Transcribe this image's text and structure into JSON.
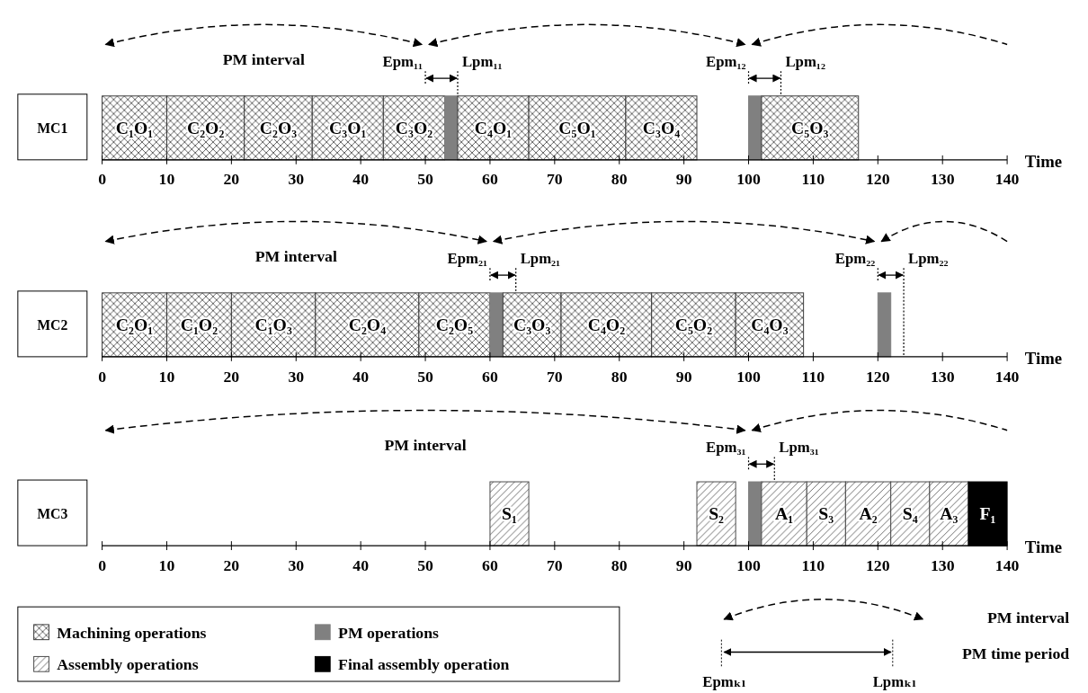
{
  "chart_data": [
    {
      "type": "bar",
      "orientation": "horizontal",
      "categories": [
        "MC1"
      ],
      "xlabel": "Time",
      "xlim": [
        0,
        140
      ],
      "xticks": [
        0,
        10,
        20,
        30,
        40,
        50,
        60,
        70,
        80,
        90,
        100,
        110,
        120,
        130,
        140
      ],
      "series": [
        {
          "name": "C₁O₁",
          "color": "#3a3a3a",
          "base": [
            0
          ],
          "values": [
            10
          ]
        },
        {
          "name": "C₂O₂",
          "color": "#3a3a3a",
          "base": [
            10
          ],
          "values": [
            12
          ]
        },
        {
          "name": "C₂O₃",
          "color": "#3a3a3a",
          "base": [
            22
          ],
          "values": [
            10.5
          ]
        },
        {
          "name": "C₃O₁",
          "color": "#3a3a3a",
          "base": [
            32.5
          ],
          "values": [
            11
          ]
        },
        {
          "name": "C₃O₂",
          "color": "#3a3a3a",
          "base": [
            43.5
          ],
          "values": [
            9.5
          ]
        },
        {
          "color": "#808080",
          "base": [
            53
          ],
          "values": [
            2
          ]
        },
        {
          "name": "C₄O₁",
          "color": "#3a3a3a",
          "base": [
            55
          ],
          "values": [
            11
          ]
        },
        {
          "name": "C₅O₁",
          "color": "#3a3a3a",
          "base": [
            66
          ],
          "values": [
            15
          ]
        },
        {
          "name": "C₃O₄",
          "color": "#3a3a3a",
          "base": [
            81
          ],
          "values": [
            11
          ]
        },
        {
          "color": "#808080",
          "base": [
            100
          ],
          "values": [
            2
          ]
        },
        {
          "name": "C₅O₃",
          "color": "#3a3a3a",
          "base": [
            102
          ],
          "values": [
            15
          ]
        }
      ],
      "annotations": [
        "PM interval"
      ],
      "ref_lines": [
        {
          "axis": "x",
          "value": 50,
          "label": "Epm₁₁",
          "line_style": "dotted"
        },
        {
          "axis": "x",
          "value": 55,
          "label": "Lpm₁₁",
          "line_style": "dotted"
        },
        {
          "axis": "x",
          "value": 100,
          "label": "Epm₁₂",
          "line_style": "dotted"
        },
        {
          "axis": "x",
          "value": 105,
          "label": "Lpm₁₂",
          "line_style": "dotted"
        }
      ]
    },
    {
      "type": "bar",
      "orientation": "horizontal",
      "categories": [
        "MC2"
      ],
      "xlabel": "Time",
      "xlim": [
        0,
        140
      ],
      "xticks": [
        0,
        10,
        20,
        30,
        40,
        50,
        60,
        70,
        80,
        90,
        100,
        110,
        120,
        130,
        140
      ],
      "series": [
        {
          "name": "C₂O₁",
          "color": "#3a3a3a",
          "base": [
            0
          ],
          "values": [
            10
          ]
        },
        {
          "name": "C₁O₂",
          "color": "#3a3a3a",
          "base": [
            10
          ],
          "values": [
            10
          ]
        },
        {
          "name": "C₁O₃",
          "color": "#3a3a3a",
          "base": [
            20
          ],
          "values": [
            13
          ]
        },
        {
          "name": "C₂O₄",
          "color": "#3a3a3a",
          "base": [
            33
          ],
          "values": [
            16
          ]
        },
        {
          "name": "C₂O₅",
          "color": "#3a3a3a",
          "base": [
            49
          ],
          "values": [
            11
          ]
        },
        {
          "color": "#808080",
          "base": [
            60
          ],
          "values": [
            2
          ]
        },
        {
          "name": "C₃O₃",
          "color": "#3a3a3a",
          "base": [
            62
          ],
          "values": [
            9
          ]
        },
        {
          "name": "C₄O₂",
          "color": "#3a3a3a",
          "base": [
            71
          ],
          "values": [
            14
          ]
        },
        {
          "name": "C₅O₂",
          "color": "#3a3a3a",
          "base": [
            85
          ],
          "values": [
            13
          ]
        },
        {
          "name": "C₄O₃",
          "color": "#3a3a3a",
          "base": [
            98
          ],
          "values": [
            10.5
          ]
        },
        {
          "color": "#808080",
          "base": [
            120
          ],
          "values": [
            2
          ]
        }
      ],
      "annotations": [
        "PM interval"
      ],
      "ref_lines": [
        {
          "axis": "x",
          "value": 60,
          "label": "Epm₂₁",
          "line_style": "dotted"
        },
        {
          "axis": "x",
          "value": 64,
          "label": "Lpm₂₁",
          "line_style": "dotted"
        },
        {
          "axis": "x",
          "value": 120,
          "label": "Epm₂₂",
          "line_style": "dotted"
        },
        {
          "axis": "x",
          "value": 124,
          "label": "Lpm₂₂",
          "line_style": "dotted"
        }
      ]
    },
    {
      "type": "bar",
      "orientation": "horizontal",
      "categories": [
        "MC3"
      ],
      "xlabel": "Time",
      "xlim": [
        0,
        140
      ],
      "xticks": [
        0,
        10,
        20,
        30,
        40,
        50,
        60,
        70,
        80,
        90,
        100,
        110,
        120,
        130,
        140
      ],
      "legend": "bottom",
      "series": [
        {
          "name": "S₁",
          "color": "#4a4a4a",
          "base": [
            60
          ],
          "values": [
            6
          ]
        },
        {
          "name": "S₂",
          "color": "#4a4a4a",
          "base": [
            92
          ],
          "values": [
            6
          ]
        },
        {
          "color": "#808080",
          "base": [
            100
          ],
          "values": [
            2
          ]
        },
        {
          "name": "A₁",
          "color": "#4a4a4a",
          "base": [
            102
          ],
          "values": [
            7
          ]
        },
        {
          "name": "S₃",
          "color": "#4a4a4a",
          "base": [
            109
          ],
          "values": [
            6
          ]
        },
        {
          "name": "A₂",
          "color": "#4a4a4a",
          "base": [
            115
          ],
          "values": [
            7
          ]
        },
        {
          "name": "S₄",
          "color": "#4a4a4a",
          "base": [
            122
          ],
          "values": [
            6
          ]
        },
        {
          "name": "A₃",
          "color": "#4a4a4a",
          "base": [
            128
          ],
          "values": [
            6
          ]
        },
        {
          "name": "F₁",
          "color": "#000000",
          "base": [
            134
          ],
          "values": [
            6
          ]
        },
        {
          "name": "Machining operations",
          "color": "#3a3a3a",
          "values": [
            null
          ]
        },
        {
          "name": "PM operations",
          "color": "#808080",
          "values": [
            null
          ]
        },
        {
          "name": "Assembly operations",
          "color": "#4a4a4a",
          "values": [
            null
          ]
        },
        {
          "name": "Final assembly operation",
          "color": "#000000",
          "values": [
            null
          ]
        }
      ],
      "annotations": [
        "PM interval"
      ],
      "ref_lines": [
        {
          "axis": "x",
          "value": 100,
          "label": "Epm₃₁",
          "line_style": "dotted"
        },
        {
          "axis": "x",
          "value": 104,
          "label": "Lpm₃₁",
          "line_style": "dotted"
        }
      ]
    },
    {
      "type": "other",
      "annotations": [
        "PM interval",
        "PM time period",
        "Epmₖₗ",
        "Lpmₖₗ"
      ]
    }
  ]
}
